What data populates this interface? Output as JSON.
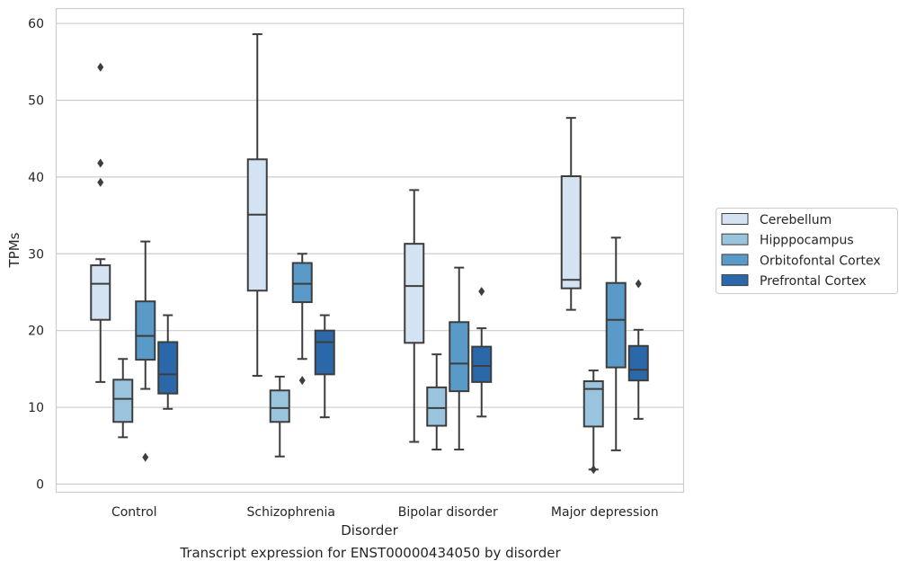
{
  "chart_data": {
    "type": "box",
    "xlabel": "Disorder",
    "ylabel": "TPMs",
    "caption": "Transcript expression for ENST00000434050 by disorder",
    "ylim": [
      -1,
      62
    ],
    "yticks": [
      0,
      10,
      20,
      30,
      40,
      50,
      60
    ],
    "grid": "horizontal",
    "legend_position": "right",
    "categories": [
      "Control",
      "Schizophrenia",
      "Bipolar disorder",
      "Major depression"
    ],
    "series": [
      {
        "name": "Cerebellum",
        "color": "#d3e3f2",
        "boxes": [
          {
            "whislo": 13.3,
            "q1": 21.4,
            "med": 26.1,
            "q3": 28.5,
            "whishi": 29.3,
            "fliers": [
              54.3,
              41.8,
              39.3
            ]
          },
          {
            "whislo": 14.1,
            "q1": 25.2,
            "med": 35.1,
            "q3": 42.3,
            "whishi": 58.6,
            "fliers": []
          },
          {
            "whislo": 5.5,
            "q1": 18.4,
            "med": 25.8,
            "q3": 31.3,
            "whishi": 38.3,
            "fliers": []
          },
          {
            "whislo": 22.7,
            "q1": 25.5,
            "med": 26.6,
            "q3": 40.1,
            "whishi": 47.7,
            "fliers": []
          }
        ]
      },
      {
        "name": "Hipppocampus",
        "color": "#9ac3de",
        "boxes": [
          {
            "whislo": 6.1,
            "q1": 8.1,
            "med": 11.1,
            "q3": 13.6,
            "whishi": 16.3,
            "fliers": []
          },
          {
            "whislo": 3.6,
            "q1": 8.1,
            "med": 9.9,
            "q3": 12.2,
            "whishi": 14.0,
            "fliers": []
          },
          {
            "whislo": 4.5,
            "q1": 7.6,
            "med": 9.9,
            "q3": 12.6,
            "whishi": 16.9,
            "fliers": []
          },
          {
            "whislo": 1.9,
            "q1": 7.5,
            "med": 12.4,
            "q3": 13.4,
            "whishi": 14.8,
            "fliers": [
              1.9
            ]
          }
        ]
      },
      {
        "name": "Orbitofontal Cortex",
        "color": "#5a9ac8",
        "boxes": [
          {
            "whislo": 12.4,
            "q1": 16.2,
            "med": 19.3,
            "q3": 23.8,
            "whishi": 31.6,
            "fliers": [
              3.5
            ]
          },
          {
            "whislo": 16.3,
            "q1": 23.7,
            "med": 26.1,
            "q3": 28.8,
            "whishi": 30.0,
            "fliers": [
              13.5
            ]
          },
          {
            "whislo": 4.5,
            "q1": 12.1,
            "med": 15.7,
            "q3": 21.1,
            "whishi": 28.2,
            "fliers": []
          },
          {
            "whislo": 4.4,
            "q1": 15.2,
            "med": 21.4,
            "q3": 26.2,
            "whishi": 32.1,
            "fliers": []
          }
        ]
      },
      {
        "name": "Prefrontal Cortex",
        "color": "#2a68a9",
        "boxes": [
          {
            "whislo": 9.8,
            "q1": 11.8,
            "med": 14.3,
            "q3": 18.5,
            "whishi": 22.0,
            "fliers": []
          },
          {
            "whislo": 8.7,
            "q1": 14.3,
            "med": 18.5,
            "q3": 20.0,
            "whishi": 22.0,
            "fliers": []
          },
          {
            "whislo": 8.8,
            "q1": 13.3,
            "med": 15.4,
            "q3": 17.9,
            "whishi": 20.3,
            "fliers": [
              25.1
            ]
          },
          {
            "whislo": 8.5,
            "q1": 13.5,
            "med": 14.9,
            "q3": 18.0,
            "whishi": 20.1,
            "fliers": [
              26.1
            ]
          }
        ]
      }
    ]
  }
}
